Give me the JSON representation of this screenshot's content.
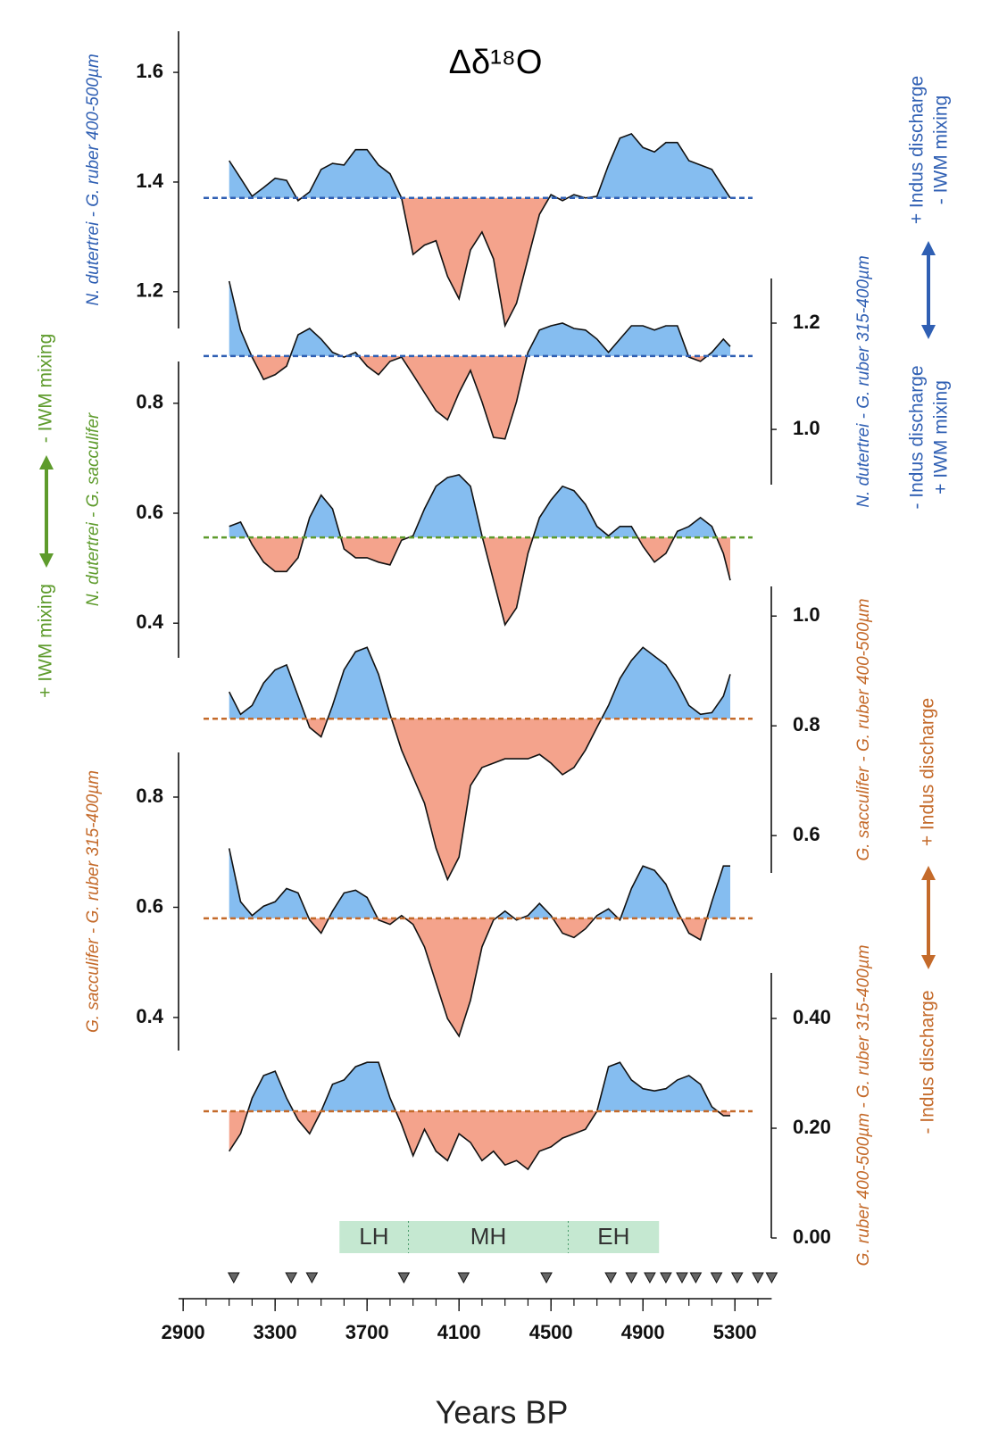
{
  "chart_data": {
    "type": "area",
    "title": "Δδ¹⁸O",
    "xlabel": "Years BP",
    "xlim": [
      2880,
      5460
    ],
    "xticks": [
      2900,
      3300,
      3700,
      4100,
      4500,
      4900,
      5300
    ],
    "xminorticks": [
      2900,
      3000,
      3100,
      3200,
      3300,
      3400,
      3500,
      3600,
      3700,
      3800,
      3900,
      4000,
      4100,
      4200,
      4300,
      4400,
      4500,
      4600,
      4700,
      4800,
      4900,
      5000,
      5100,
      5200,
      5300,
      5400
    ],
    "fill_above": "#85bdf0",
    "fill_below": "#f4a38c",
    "x": [
      3100,
      3150,
      3200,
      3250,
      3300,
      3350,
      3400,
      3450,
      3500,
      3550,
      3600,
      3650,
      3700,
      3750,
      3800,
      3850,
      3900,
      3950,
      4000,
      4050,
      4100,
      4150,
      4200,
      4250,
      4300,
      4350,
      4400,
      4450,
      4500,
      4550,
      4600,
      4650,
      4700,
      4750,
      4800,
      4850,
      4900,
      4950,
      5000,
      5050,
      5100,
      5150,
      5200,
      5250,
      5280
    ],
    "series": [
      {
        "name": "N. dutertrei - G. ruber 400-500µm",
        "color": "#2f5fb3",
        "axis": "left",
        "baseline": 1.371,
        "ylim": [
          1.133,
          1.675
        ],
        "yticks": [
          1.2,
          1.4,
          1.6
        ],
        "values": [
          1.439,
          1.407,
          1.374,
          1.39,
          1.407,
          1.403,
          1.366,
          1.382,
          1.423,
          1.434,
          1.431,
          1.459,
          1.459,
          1.431,
          1.415,
          1.371,
          1.268,
          1.285,
          1.293,
          1.228,
          1.187,
          1.276,
          1.309,
          1.26,
          1.138,
          1.179,
          1.26,
          1.341,
          1.377,
          1.366,
          1.377,
          1.371,
          1.374,
          1.431,
          1.48,
          1.488,
          1.463,
          1.455,
          1.472,
          1.472,
          1.439,
          1.431,
          1.423,
          1.39,
          1.371
        ]
      },
      {
        "name": "N. dutertrei - G. ruber 315-400µm",
        "color": "#2f5fb3",
        "axis": "right",
        "baseline": 1.138,
        "ylim": [
          0.896,
          1.284
        ],
        "yticks": [
          {
            "value": 1,
            "label": "1.0"
          },
          1.2
        ],
        "values": [
          1.279,
          1.187,
          1.136,
          1.094,
          1.103,
          1.119,
          1.178,
          1.19,
          1.17,
          1.145,
          1.136,
          1.145,
          1.119,
          1.103,
          1.128,
          1.136,
          1.103,
          1.069,
          1.035,
          1.018,
          1.069,
          1.111,
          1.052,
          0.985,
          0.982,
          1.052,
          1.145,
          1.187,
          1.195,
          1.2,
          1.19,
          1.187,
          1.17,
          1.145,
          1.17,
          1.195,
          1.195,
          1.187,
          1.195,
          1.195,
          1.136,
          1.128,
          1.145,
          1.17,
          1.156
        ]
      },
      {
        "name": "N. dutertrei - G. sacculifer",
        "color": "#5e9b2c",
        "axis": "left",
        "baseline": 0.556,
        "ylim": [
          0.337,
          0.876
        ],
        "yticks": [
          0.4,
          0.6,
          0.8
        ],
        "values": [
          0.576,
          0.584,
          0.543,
          0.511,
          0.494,
          0.494,
          0.519,
          0.592,
          0.633,
          0.608,
          0.535,
          0.519,
          0.519,
          0.511,
          0.506,
          0.551,
          0.559,
          0.608,
          0.649,
          0.665,
          0.67,
          0.649,
          0.559,
          0.478,
          0.397,
          0.428,
          0.527,
          0.592,
          0.624,
          0.649,
          0.641,
          0.616,
          0.576,
          0.559,
          0.576,
          0.576,
          0.54,
          0.511,
          0.527,
          0.567,
          0.576,
          0.592,
          0.576,
          0.527,
          0.478
        ]
      },
      {
        "name": "G. sacculifer - G. ruber 400-500µm",
        "color": "#c46a2a",
        "axis": "right",
        "baseline": 0.813,
        "ylim": [
          0.532,
          1.054
        ],
        "yticks": [
          0.6,
          0.8,
          {
            "value": 1,
            "label": "1.0"
          }
        ],
        "values": [
          0.862,
          0.821,
          0.837,
          0.878,
          0.902,
          0.911,
          0.854,
          0.797,
          0.78,
          0.837,
          0.902,
          0.935,
          0.943,
          0.894,
          0.821,
          0.756,
          0.707,
          0.659,
          0.577,
          0.52,
          0.561,
          0.691,
          0.724,
          0.732,
          0.74,
          0.74,
          0.74,
          0.748,
          0.732,
          0.711,
          0.724,
          0.756,
          0.797,
          0.837,
          0.886,
          0.919,
          0.943,
          0.927,
          0.911,
          0.878,
          0.837,
          0.821,
          0.824,
          0.854,
          0.894
        ]
      },
      {
        "name": "G. sacculifer - G. ruber 315-400µm",
        "color": "#c46a2a",
        "axis": "left",
        "baseline": 0.58,
        "ylim": [
          0.34,
          0.881
        ],
        "yticks": [
          0.4,
          0.6,
          0.8
        ],
        "values": [
          0.707,
          0.61,
          0.585,
          0.602,
          0.61,
          0.634,
          0.626,
          0.577,
          0.553,
          0.593,
          0.626,
          0.631,
          0.618,
          0.577,
          0.569,
          0.585,
          0.569,
          0.528,
          0.463,
          0.398,
          0.366,
          0.431,
          0.528,
          0.577,
          0.593,
          0.577,
          0.585,
          0.607,
          0.585,
          0.553,
          0.545,
          0.561,
          0.585,
          0.597,
          0.577,
          0.634,
          0.675,
          0.667,
          0.642,
          0.593,
          0.553,
          0.541,
          0.61,
          0.675,
          0.675
        ]
      },
      {
        "name": "G. ruber 400-500µm - G. ruber 315-400µm",
        "color": "#c46a2a",
        "axis": "right",
        "baseline": 0.231,
        "ylim": [
          0,
          0.483
        ],
        "yticks": [
          {
            "value": 0,
            "label": "0.00"
          },
          {
            "value": 0.2,
            "label": "0.20"
          },
          {
            "value": 0.4,
            "label": "0.40"
          }
        ],
        "values": [
          0.158,
          0.19,
          0.255,
          0.296,
          0.304,
          0.255,
          0.215,
          0.19,
          0.231,
          0.28,
          0.288,
          0.312,
          0.32,
          0.32,
          0.255,
          0.207,
          0.15,
          0.198,
          0.158,
          0.141,
          0.19,
          0.174,
          0.141,
          0.158,
          0.133,
          0.141,
          0.125,
          0.158,
          0.166,
          0.182,
          0.19,
          0.198,
          0.231,
          0.312,
          0.32,
          0.288,
          0.272,
          0.268,
          0.272,
          0.288,
          0.296,
          0.28,
          0.239,
          0.223,
          0.223
        ]
      }
    ],
    "periods": [
      {
        "label": "LH",
        "start": 3580,
        "end": 3880
      },
      {
        "label": "MH",
        "start": 3880,
        "end": 4575
      },
      {
        "label": "EH",
        "start": 4575,
        "end": 4970
      }
    ],
    "markers": [
      3120,
      3370,
      3460,
      3860,
      4120,
      4480,
      4760,
      4850,
      4930,
      5000,
      5070,
      5130,
      5220,
      5310,
      5400,
      5460
    ],
    "annotations": [
      "+ Indus discharge",
      "- IWM mixing",
      "- Indus discharge",
      "+ IWM mixing",
      "- IWM mixing",
      "+ IWM mixing",
      "+ Indus discharge",
      "- Indus discharge"
    ]
  }
}
